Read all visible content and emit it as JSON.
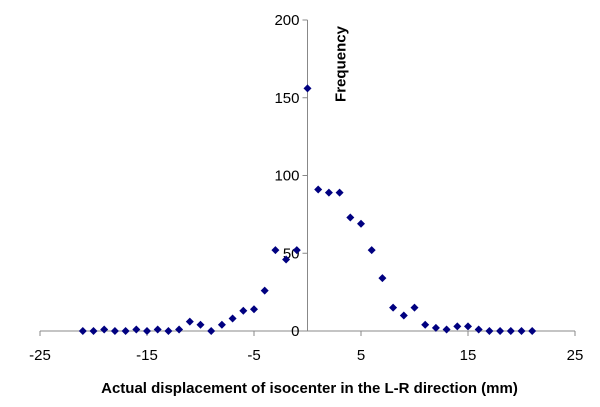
{
  "chart_data": {
    "type": "scatter",
    "xlabel": "Actual displacement of isocenter in the L-R direction (mm)",
    "ylabel": "Frequency",
    "xlim": [
      -25,
      25
    ],
    "ylim": [
      0,
      200
    ],
    "x_ticks": [
      "-25",
      "-15",
      "-5",
      "5",
      "15",
      "25"
    ],
    "y_ticks": [
      "0",
      "50",
      "100",
      "150",
      "200"
    ],
    "grid": false,
    "legend": false,
    "marker": "diamond",
    "marker_color": "#000080",
    "points": [
      [
        -21,
        0
      ],
      [
        -20,
        0
      ],
      [
        -19,
        1
      ],
      [
        -18,
        0
      ],
      [
        -17,
        0
      ],
      [
        -16,
        1
      ],
      [
        -15,
        0
      ],
      [
        -14,
        1
      ],
      [
        -13,
        0
      ],
      [
        -12,
        1
      ],
      [
        -11,
        6
      ],
      [
        -10,
        4
      ],
      [
        -9,
        0
      ],
      [
        -8,
        4
      ],
      [
        -7,
        8
      ],
      [
        -6,
        13
      ],
      [
        -5,
        14
      ],
      [
        -4,
        26
      ],
      [
        -3,
        52
      ],
      [
        -2,
        46
      ],
      [
        -1,
        52
      ],
      [
        0,
        156
      ],
      [
        1,
        91
      ],
      [
        2,
        89
      ],
      [
        3,
        89
      ],
      [
        4,
        73
      ],
      [
        5,
        69
      ],
      [
        6,
        52
      ],
      [
        7,
        34
      ],
      [
        8,
        15
      ],
      [
        9,
        10
      ],
      [
        10,
        15
      ],
      [
        11,
        4
      ],
      [
        12,
        2
      ],
      [
        13,
        1
      ],
      [
        14,
        3
      ],
      [
        15,
        3
      ],
      [
        16,
        1
      ],
      [
        17,
        0
      ],
      [
        18,
        0
      ],
      [
        19,
        0
      ],
      [
        20,
        0
      ],
      [
        21,
        0
      ]
    ]
  }
}
